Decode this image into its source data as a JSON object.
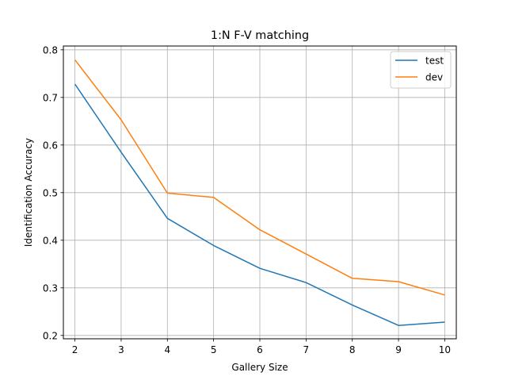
{
  "chart_data": {
    "type": "line",
    "title": "1:N F-V matching",
    "xlabel": "Gallery Size",
    "ylabel": "Identification Accuracy",
    "x": [
      2,
      3,
      4,
      5,
      6,
      7,
      8,
      9,
      10
    ],
    "xlim": [
      1.75,
      10.25
    ],
    "ylim": [
      0.193,
      0.808
    ],
    "xticks": [
      2,
      3,
      4,
      5,
      6,
      7,
      8,
      9,
      10
    ],
    "yticks": [
      0.2,
      0.3,
      0.4,
      0.5,
      0.6,
      0.7,
      0.8
    ],
    "ytick_labels": [
      "0.2",
      "0.3",
      "0.4",
      "0.5",
      "0.6",
      "0.7",
      "0.8"
    ],
    "grid": true,
    "legend_position": "top-right",
    "series": [
      {
        "name": "test",
        "color": "#1f77b4",
        "values": [
          0.728,
          0.585,
          0.446,
          0.389,
          0.341,
          0.311,
          0.264,
          0.221,
          0.228
        ]
      },
      {
        "name": "dev",
        "color": "#ff7f0e",
        "values": [
          0.779,
          0.653,
          0.499,
          0.49,
          0.422,
          0.371,
          0.32,
          0.313,
          0.285
        ]
      }
    ]
  }
}
